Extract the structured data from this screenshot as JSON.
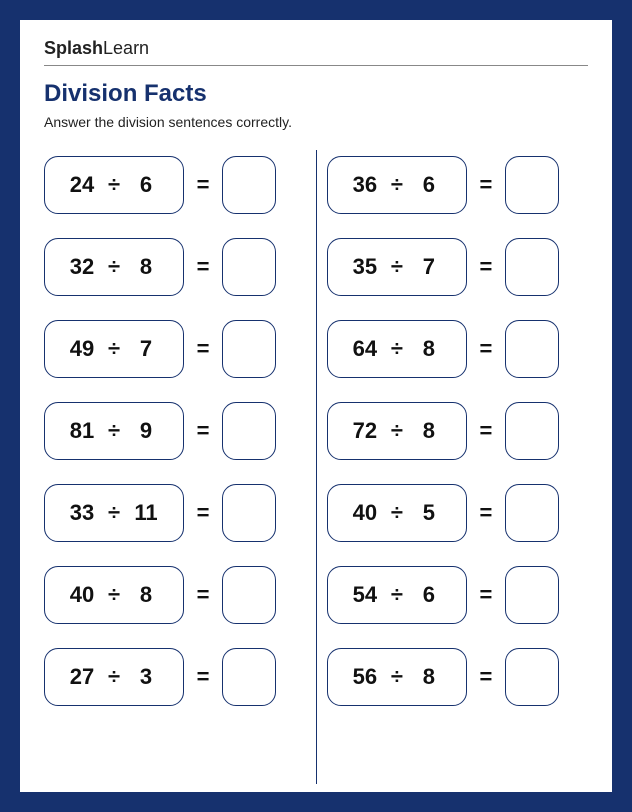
{
  "logo": {
    "bold": "Splash",
    "light": "Learn"
  },
  "title": "Division Facts",
  "instructions": "Answer the division sentences correctly.",
  "operator": "÷",
  "equals": "=",
  "colors": {
    "frame": "#16316e",
    "page_bg": "#ffffff",
    "title": "#16316e",
    "text": "#222222",
    "border": "#16316e"
  },
  "left_column": [
    {
      "a": "24",
      "b": "6"
    },
    {
      "a": "32",
      "b": "8"
    },
    {
      "a": "49",
      "b": "7"
    },
    {
      "a": "81",
      "b": "9"
    },
    {
      "a": "33",
      "b": "11"
    },
    {
      "a": "40",
      "b": "8"
    },
    {
      "a": "27",
      "b": "3"
    }
  ],
  "right_column": [
    {
      "a": "36",
      "b": "6"
    },
    {
      "a": "35",
      "b": "7"
    },
    {
      "a": "64",
      "b": "8"
    },
    {
      "a": "72",
      "b": "8"
    },
    {
      "a": "40",
      "b": "5"
    },
    {
      "a": "54",
      "b": "6"
    },
    {
      "a": "56",
      "b": "8"
    }
  ]
}
